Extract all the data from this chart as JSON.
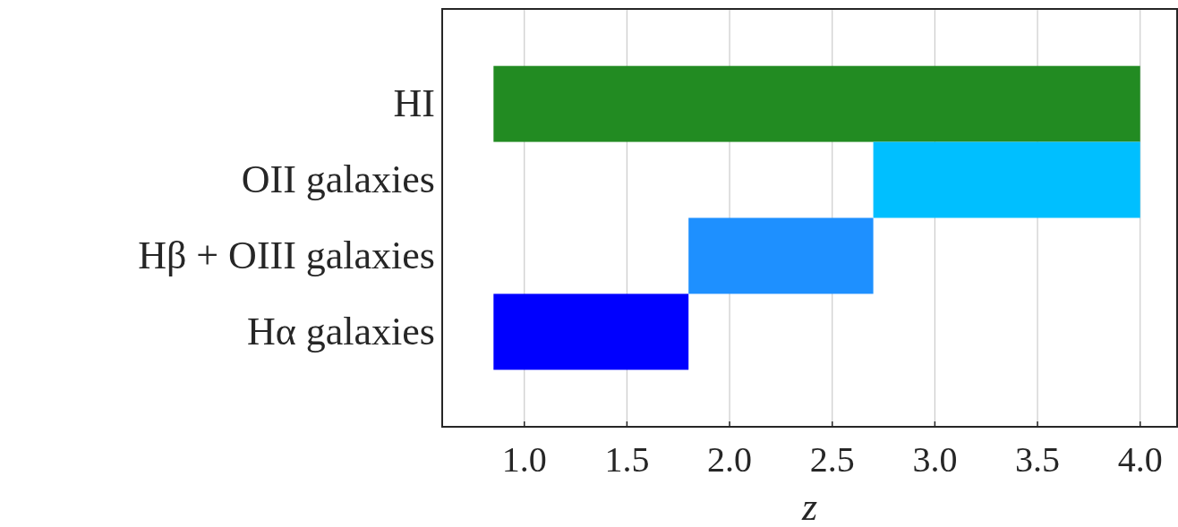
{
  "chart_data": {
    "type": "bar",
    "orientation": "horizontal",
    "categories": [
      "HI",
      "OII galaxies",
      "Hβ + OIII galaxies",
      "Hα galaxies"
    ],
    "values": [
      3.15,
      1.3,
      0.9,
      0.95
    ],
    "base": [
      0.85,
      2.7,
      1.8,
      0.85
    ],
    "colors": [
      "#228b22",
      "#00bfff",
      "#1e90ff",
      "#0000ff"
    ],
    "xlim": [
      0.6,
      4.18
    ],
    "xticks": [
      {
        "value": 1,
        "label": "1.0"
      },
      1.5,
      {
        "value": 2,
        "label": "2.0"
      },
      2.5,
      {
        "value": 3,
        "label": "3.0"
      },
      3.5,
      {
        "value": 4,
        "label": "4.0"
      }
    ],
    "xlabel": "z",
    "grid": "x"
  }
}
